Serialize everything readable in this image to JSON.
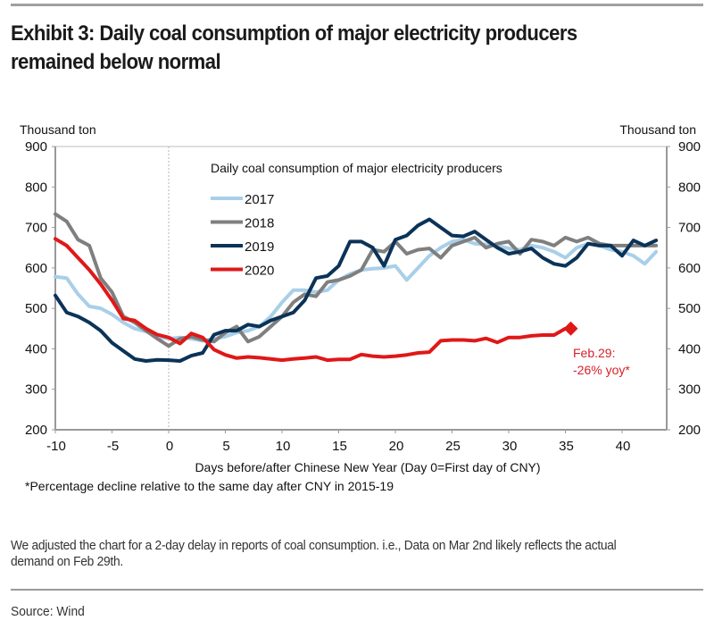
{
  "header": {
    "title": "Exhibit 3: Daily coal consumption of major electricity producers remained below normal"
  },
  "footer": {
    "note": "We adjusted the chart for a 2-day delay in reports of coal consumption. i.e., Data on Mar 2nd likely reflects the actual demand on Feb 29th.",
    "source": "Source: Wind"
  },
  "colors": {
    "2017": "#a9cfe9",
    "2018": "#7f7f7f",
    "2019": "#0b3358",
    "2020": "#e01818",
    "axis": "#999999",
    "annotation": "#d8202a"
  },
  "chart_data": {
    "type": "line",
    "title": "Daily coal consumption of major electricity producers",
    "xlabel": "Days before/after Chinese New Year (Day 0=First day of CNY)",
    "ylabel_left": "Thousand ton",
    "ylabel_right": "Thousand ton",
    "footnote": "*Percentage decline relative to the same day after CNY in 2015-19",
    "xlim": [
      -10,
      43
    ],
    "ylim": [
      200,
      900
    ],
    "xticks": [
      -10,
      -5,
      0,
      5,
      10,
      15,
      20,
      25,
      30,
      35,
      40
    ],
    "yticks": [
      200,
      300,
      400,
      500,
      600,
      700,
      800,
      900
    ],
    "reference_line_x": 0,
    "legend_position": "top-center",
    "series": [
      {
        "name": "2017",
        "x": [
          -10,
          -9,
          -8,
          -7,
          -6,
          -5,
          -4,
          -3,
          -2,
          -1,
          0,
          1,
          2,
          3,
          4,
          5,
          6,
          7,
          8,
          9,
          10,
          11,
          12,
          13,
          14,
          15,
          16,
          17,
          18,
          19,
          20,
          21,
          22,
          23,
          24,
          25,
          26,
          27,
          28,
          29,
          30,
          31,
          32,
          33,
          34,
          35,
          36,
          37,
          38,
          39,
          40,
          41,
          42,
          43
        ],
        "values": [
          578,
          575,
          535,
          505,
          500,
          485,
          465,
          450,
          443,
          430,
          425,
          428,
          425,
          420,
          425,
          430,
          440,
          445,
          455,
          480,
          515,
          545,
          545,
          540,
          545,
          570,
          585,
          595,
          598,
          600,
          605,
          570,
          600,
          630,
          650,
          665,
          670,
          660,
          658,
          655,
          648,
          645,
          655,
          650,
          640,
          625,
          650,
          660,
          655,
          645,
          640,
          630,
          610,
          640
        ]
      },
      {
        "name": "2018",
        "x": [
          -10,
          -9,
          -8,
          -7,
          -6,
          -5,
          -4,
          -3,
          -2,
          -1,
          0,
          1,
          2,
          3,
          4,
          5,
          6,
          7,
          8,
          9,
          10,
          11,
          12,
          13,
          14,
          15,
          16,
          17,
          18,
          19,
          20,
          21,
          22,
          23,
          24,
          25,
          26,
          27,
          28,
          29,
          30,
          31,
          32,
          33,
          34,
          35,
          36,
          37,
          38,
          39,
          40,
          41,
          42,
          43
        ],
        "values": [
          733,
          715,
          670,
          655,
          575,
          540,
          480,
          465,
          445,
          425,
          407,
          425,
          430,
          422,
          418,
          440,
          455,
          418,
          430,
          455,
          480,
          515,
          535,
          530,
          565,
          570,
          580,
          595,
          645,
          640,
          665,
          635,
          645,
          648,
          625,
          655,
          665,
          675,
          650,
          660,
          665,
          635,
          670,
          665,
          655,
          675,
          665,
          675,
          660,
          655,
          655,
          655,
          655,
          655
        ]
      },
      {
        "name": "2019",
        "x": [
          -10,
          -9,
          -8,
          -7,
          -6,
          -5,
          -4,
          -3,
          -2,
          -1,
          0,
          1,
          2,
          3,
          4,
          5,
          6,
          7,
          8,
          9,
          10,
          11,
          12,
          13,
          14,
          15,
          16,
          17,
          18,
          19,
          20,
          21,
          22,
          23,
          24,
          25,
          26,
          27,
          28,
          29,
          30,
          31,
          32,
          33,
          34,
          35,
          36,
          37,
          38,
          39,
          40,
          41,
          42,
          43
        ],
        "values": [
          532,
          490,
          480,
          465,
          445,
          415,
          395,
          375,
          370,
          373,
          372,
          370,
          383,
          390,
          435,
          445,
          445,
          460,
          455,
          470,
          480,
          490,
          520,
          575,
          580,
          605,
          665,
          665,
          650,
          605,
          670,
          680,
          705,
          720,
          700,
          680,
          678,
          690,
          670,
          650,
          635,
          640,
          648,
          625,
          610,
          605,
          625,
          660,
          655,
          655,
          630,
          668,
          655,
          668
        ]
      },
      {
        "name": "2020",
        "x": [
          -10,
          -9,
          -8,
          -7,
          -6,
          -5,
          -4,
          -3,
          -2,
          -1,
          0,
          1,
          2,
          3,
          4,
          5,
          6,
          7,
          8,
          9,
          10,
          11,
          12,
          13,
          14,
          15,
          16,
          17,
          18,
          19,
          20,
          21,
          22,
          23,
          24,
          25,
          26,
          27,
          28,
          29,
          30,
          31,
          32,
          33,
          34,
          35
        ],
        "values": [
          672,
          655,
          625,
          595,
          560,
          520,
          475,
          470,
          450,
          435,
          428,
          413,
          438,
          428,
          398,
          385,
          377,
          380,
          378,
          375,
          372,
          375,
          377,
          380,
          372,
          374,
          374,
          386,
          382,
          380,
          382,
          385,
          390,
          392,
          420,
          422,
          422,
          420,
          426,
          416,
          428,
          428,
          432,
          434,
          434,
          450
        ]
      }
    ],
    "annotations": [
      {
        "label": "Feb.29:",
        "label2": "-26% yoy*",
        "series": "2020",
        "x": 35,
        "y": 450,
        "marker": "diamond"
      }
    ]
  }
}
